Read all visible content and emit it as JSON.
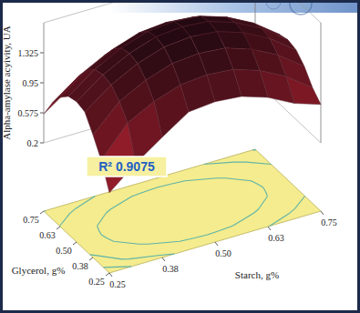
{
  "chart_data": {
    "type": "surface",
    "x_label": "Glycerol, g%",
    "y_label": "Starch, g%",
    "z_label": "Alpha-amylase acyivity, UA",
    "annotation": "R² 0.9075",
    "x": [
      0.25,
      0.3125,
      0.375,
      0.4375,
      0.5,
      0.5625,
      0.625,
      0.6875,
      0.75
    ],
    "y": [
      0.25,
      0.3125,
      0.375,
      0.4375,
      0.5,
      0.5625,
      0.625,
      0.6875,
      0.75
    ],
    "z": [
      [
        0.35,
        0.62,
        0.85,
        1.07,
        1.1,
        1.07,
        0.96,
        0.79,
        0.68
      ],
      [
        0.66,
        1.03,
        1.2,
        1.31,
        1.34,
        1.31,
        1.2,
        1.03,
        0.79
      ],
      [
        0.88,
        1.2,
        1.37,
        1.48,
        1.51,
        1.48,
        1.37,
        1.2,
        0.96
      ],
      [
        1.07,
        1.31,
        1.48,
        1.59,
        1.62,
        1.59,
        1.48,
        1.31,
        1.07
      ],
      [
        1.1,
        1.34,
        1.51,
        1.62,
        1.65,
        1.62,
        1.51,
        1.34,
        1.1
      ],
      [
        1.07,
        1.31,
        1.48,
        1.59,
        1.62,
        1.59,
        1.48,
        1.31,
        1.07
      ],
      [
        0.96,
        1.2,
        1.37,
        1.48,
        1.51,
        1.48,
        1.37,
        1.2,
        0.96
      ],
      [
        0.79,
        1.03,
        1.2,
        1.31,
        1.34,
        1.31,
        1.2,
        1.03,
        0.79
      ],
      [
        0.56,
        0.79,
        0.96,
        1.07,
        1.1,
        1.07,
        0.96,
        0.79,
        0.55
      ]
    ],
    "xlim": [
      0.25,
      0.75
    ],
    "xticks": [
      0.25,
      {
        "value": 0.375,
        "label": "0.38"
      },
      {
        "value": 0.5,
        "label": "0.50"
      },
      {
        "value": 0.625,
        "label": "0.63"
      },
      0.75
    ],
    "ylim": [
      0.25,
      0.75
    ],
    "yticks": [
      0.25,
      {
        "value": 0.375,
        "label": "0.38"
      },
      {
        "value": 0.5,
        "label": "0.50"
      },
      {
        "value": 0.625,
        "label": "0.63"
      },
      0.75
    ],
    "zlim": [
      0.2,
      1.7
    ],
    "zticks": [
      0.2,
      0.575,
      0.95,
      1.325
    ]
  }
}
